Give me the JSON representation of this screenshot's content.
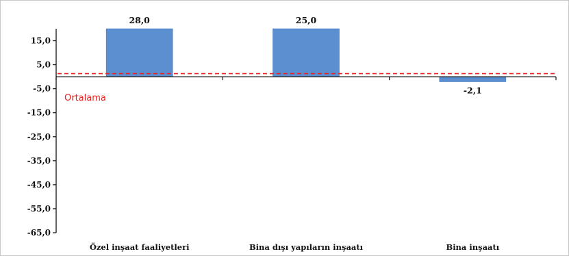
{
  "chart_data": {
    "type": "bar",
    "categories": [
      "Özel inşaat faaliyetleri",
      "Bina dışı yapıların inşaatı",
      "Bina inşaatı"
    ],
    "values": [
      28.0,
      25.0,
      -2.1
    ],
    "data_labels": [
      "28,0",
      "25,0",
      "-2,1"
    ],
    "ylim": [
      -65,
      20
    ],
    "yticks": [
      15,
      5,
      -5,
      -15,
      -25,
      -35,
      -45,
      -55,
      -65
    ],
    "ytick_labels": [
      "15,0",
      "5,0",
      "-5,0",
      "-15,0",
      "-25,0",
      "-35,0",
      "-45,0",
      "-55,0",
      "-65,0"
    ],
    "reference_line": {
      "label": "Ortalama",
      "value": 1.3,
      "color": "#e8231f",
      "style": "dashed"
    },
    "bar_color": "#5b8fd0",
    "grid": false,
    "legend": "none"
  }
}
